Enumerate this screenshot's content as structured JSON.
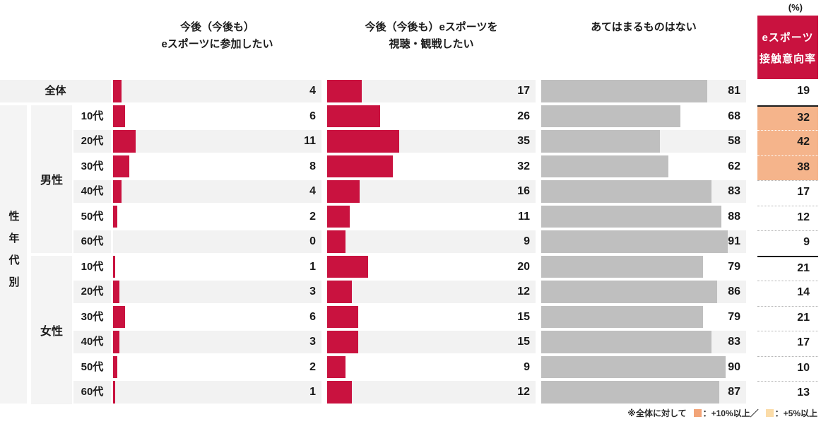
{
  "unit_label": "(%)",
  "headers": {
    "participate": [
      "今後（今後も）",
      "eスポーツに参加したい"
    ],
    "watch": [
      "今後（今後も）eスポーツを",
      "視聴・観戦したい"
    ],
    "none": [
      "あてはまるものはない"
    ],
    "rate_box": [
      "eスポーツ",
      "接触意向率"
    ]
  },
  "side": {
    "overall_label": "全体",
    "group_label": "性年代別",
    "male_label": "男性",
    "female_label": "女性"
  },
  "legend": {
    "note": "※全体に対して",
    "plus10_label": "：+10%以上／",
    "plus5_label": "：+5%以上"
  },
  "colors": {
    "red": "#C9123F",
    "gray_bar": "#BFBFBF",
    "stripe_gray": "#F2F2F2",
    "stripe_white": "#FFFFFF",
    "side_fill": "#F4F4F4",
    "highlight": "#F5B48B",
    "legend_plus10": "#F2A478",
    "legend_plus5": "#FBDCA8"
  },
  "chart_data": {
    "type": "bar",
    "orientation": "horizontal",
    "value_unit": "%",
    "xlim": [
      0,
      100
    ],
    "columns": [
      "今後（今後も）eスポーツに参加したい",
      "今後（今後も）eスポーツを視聴・観戦したい",
      "あてはまるものはない",
      "eスポーツ接触意向率"
    ],
    "rows": [
      {
        "group": "全体",
        "label": "全体",
        "participate": 4,
        "watch": 17,
        "none": 81,
        "rate": 19,
        "high": false
      },
      {
        "group": "男性",
        "label": "10代",
        "participate": 6,
        "watch": 26,
        "none": 68,
        "rate": 32,
        "high": true
      },
      {
        "group": "男性",
        "label": "20代",
        "participate": 11,
        "watch": 35,
        "none": 58,
        "rate": 42,
        "high": true
      },
      {
        "group": "男性",
        "label": "30代",
        "participate": 8,
        "watch": 32,
        "none": 62,
        "rate": 38,
        "high": true
      },
      {
        "group": "男性",
        "label": "40代",
        "participate": 4,
        "watch": 16,
        "none": 83,
        "rate": 17,
        "high": false
      },
      {
        "group": "男性",
        "label": "50代",
        "participate": 2,
        "watch": 11,
        "none": 88,
        "rate": 12,
        "high": false
      },
      {
        "group": "男性",
        "label": "60代",
        "participate": 0,
        "watch": 9,
        "none": 91,
        "rate": 9,
        "high": false
      },
      {
        "group": "女性",
        "label": "10代",
        "participate": 1,
        "watch": 20,
        "none": 79,
        "rate": 21,
        "high": false
      },
      {
        "group": "女性",
        "label": "20代",
        "participate": 3,
        "watch": 12,
        "none": 86,
        "rate": 14,
        "high": false
      },
      {
        "group": "女性",
        "label": "30代",
        "participate": 6,
        "watch": 15,
        "none": 79,
        "rate": 21,
        "high": false
      },
      {
        "group": "女性",
        "label": "40代",
        "participate": 3,
        "watch": 15,
        "none": 83,
        "rate": 17,
        "high": false
      },
      {
        "group": "女性",
        "label": "50代",
        "participate": 2,
        "watch": 9,
        "none": 90,
        "rate": 10,
        "high": false
      },
      {
        "group": "女性",
        "label": "60代",
        "participate": 1,
        "watch": 12,
        "none": 87,
        "rate": 13,
        "high": false
      }
    ]
  }
}
